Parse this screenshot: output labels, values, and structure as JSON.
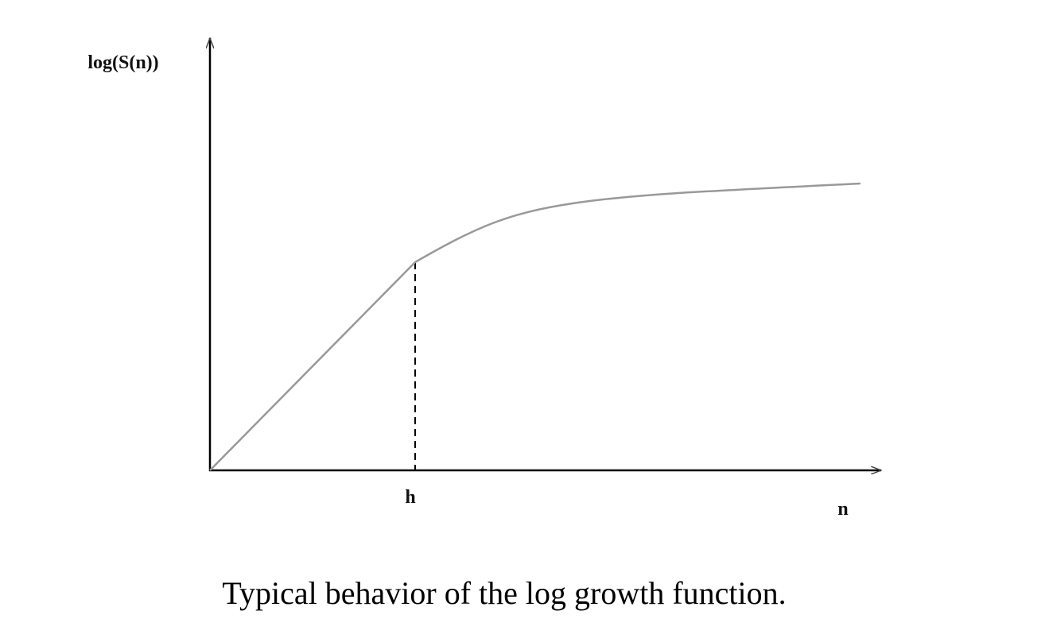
{
  "figure": {
    "y_axis_label": "log(S(n))",
    "x_axis_label": "n",
    "marker_label": "h"
  },
  "caption": "Typical behavior of the log growth function."
}
